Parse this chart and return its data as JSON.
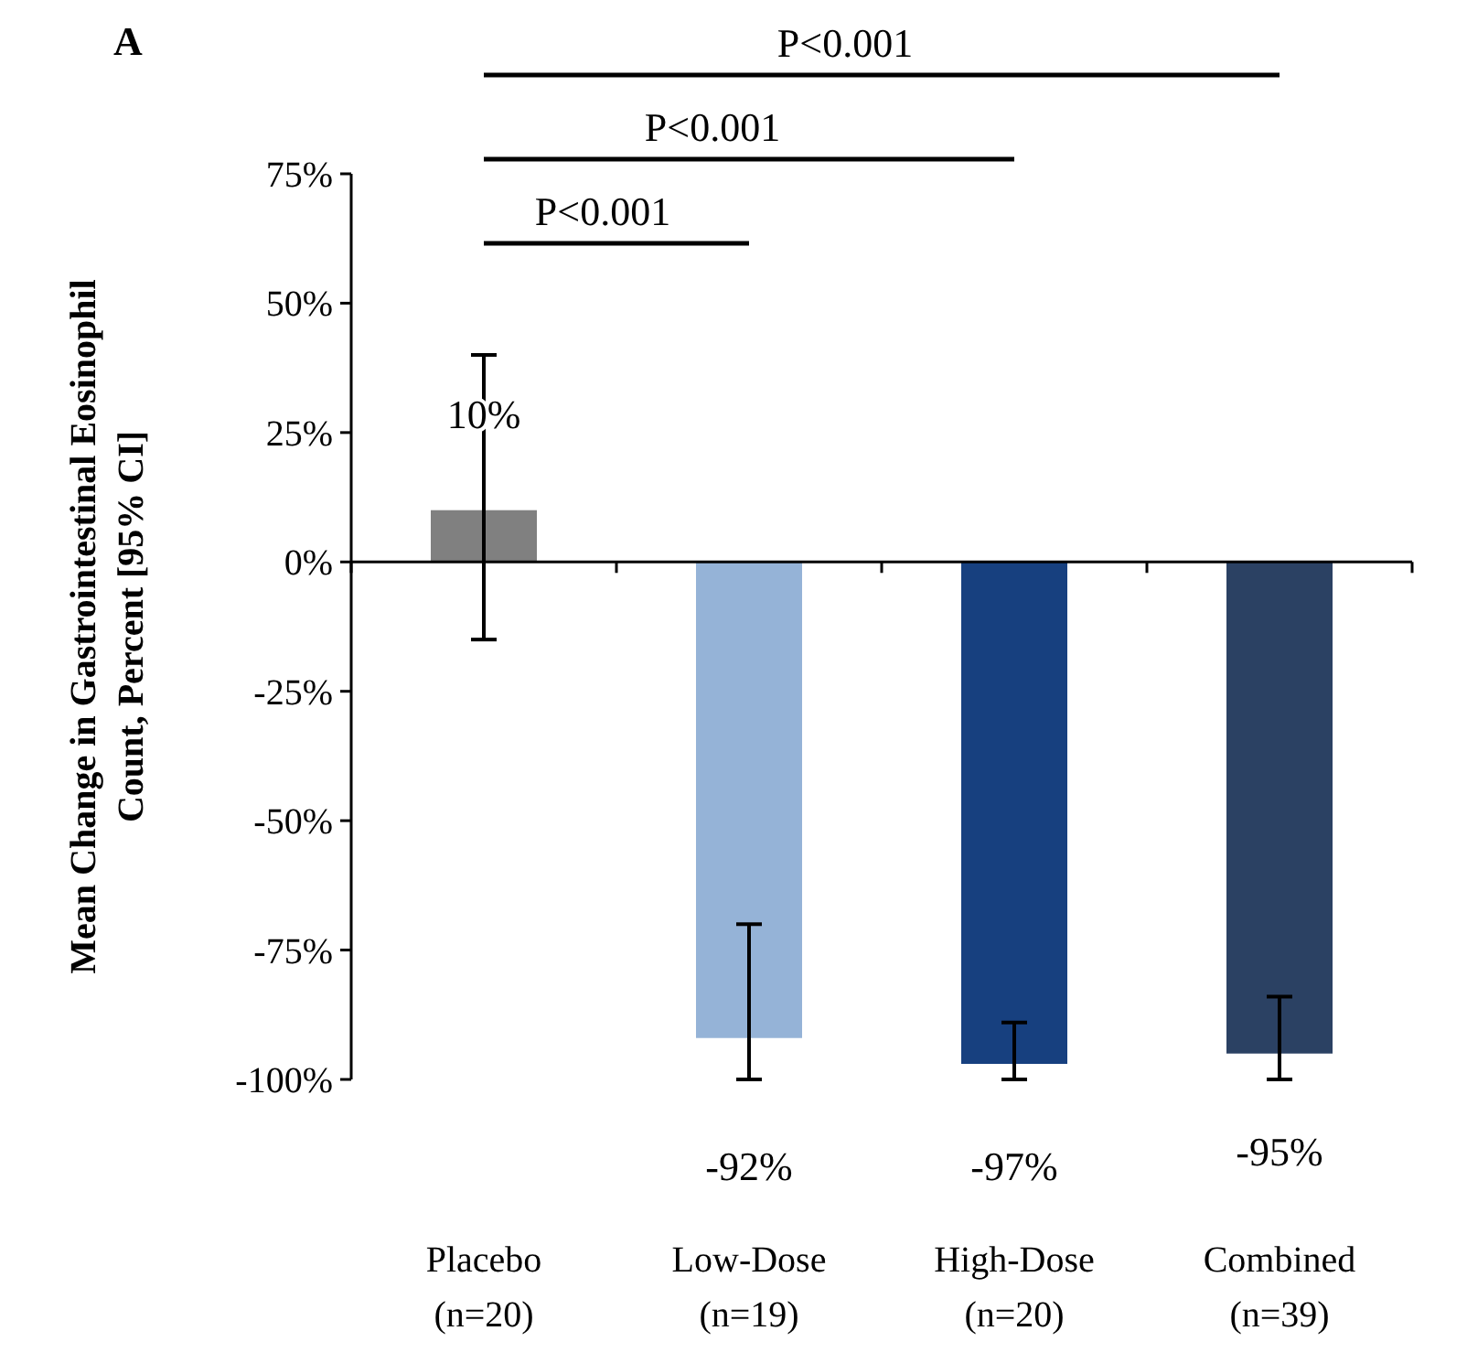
{
  "chart_data": {
    "type": "bar",
    "title": "A",
    "ylabel": "Mean Change in Gastrointestinal Eosinophil Count, Percent [95% CI]",
    "categories": [
      "Placebo (n=20)",
      "Low-Dose (n=19)",
      "High-Dose (n=20)",
      "Combined (n=39)"
    ],
    "values": [
      10,
      -92,
      -97,
      -95
    ],
    "colors": [
      "#808080",
      "#95b3d7",
      "#17407f",
      "#2b4163"
    ],
    "errors": [
      [
        -15,
        40
      ],
      [
        -100,
        -70
      ],
      [
        -100,
        -89
      ],
      [
        -100,
        -84
      ]
    ],
    "value_labels": [
      "10%",
      "-92%",
      "-97%",
      "-95%"
    ],
    "ylim": [
      -100,
      75
    ],
    "yticks": [
      {
        "value": -100,
        "label": "-100%"
      },
      {
        "value": -75,
        "label": "-75%"
      },
      {
        "value": -50,
        "label": "-50%"
      },
      {
        "value": -25,
        "label": "-25%"
      },
      {
        "value": 0,
        "label": "0%"
      },
      {
        "value": 25,
        "label": "25%"
      },
      {
        "value": 50,
        "label": "50%"
      },
      {
        "value": 75,
        "label": "75%"
      }
    ],
    "annotations": [
      "P<0.001",
      "P<0.001",
      "P<0.001"
    ]
  }
}
